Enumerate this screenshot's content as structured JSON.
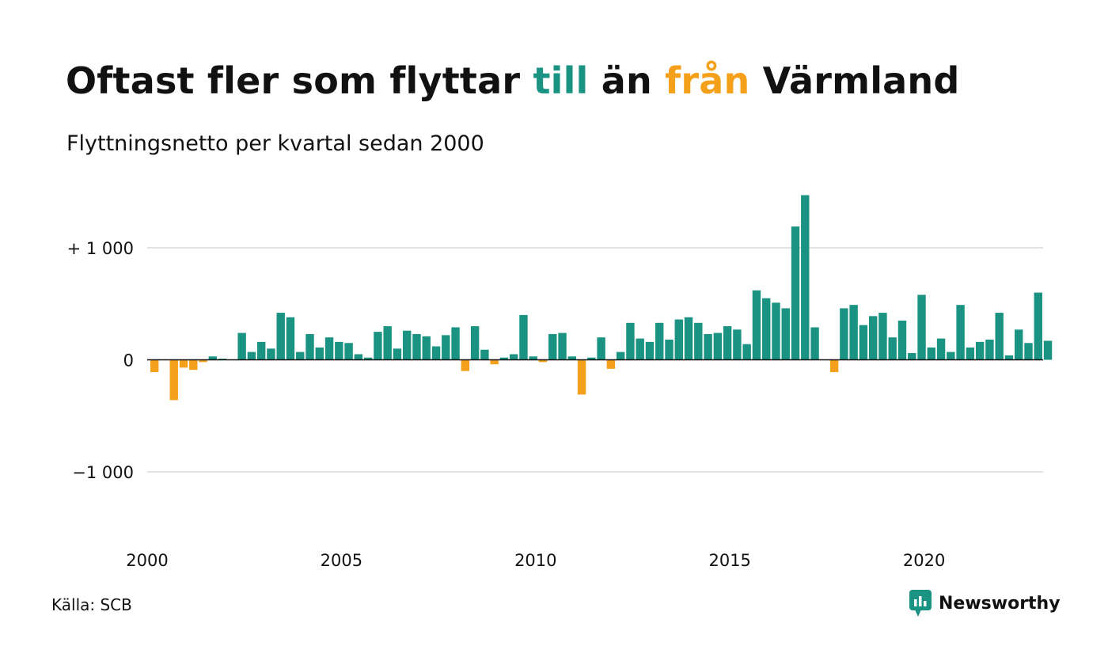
{
  "title": {
    "part1": "Oftast fler som flyttar ",
    "part2": "till",
    "part3": " än ",
    "part4": "från",
    "part5": " Värmland"
  },
  "subtitle": "Flyttningsnetto per kvartal sedan 2000",
  "source": "Källa: SCB",
  "brand": {
    "name": "Newsworthy",
    "icon": "chart-bubble-icon"
  },
  "colors": {
    "positive": "#1a9382",
    "negative": "#f5a01a",
    "grid": "#e3e3e3",
    "zero_line": "#111111"
  },
  "chart_data": {
    "type": "bar",
    "xlabel": "",
    "ylabel": "",
    "ylim": [
      -1600,
      1500
    ],
    "grid": true,
    "y_ticks": [
      {
        "value": 1000,
        "label": "+ 1 000"
      },
      {
        "value": 0,
        "label": "0"
      },
      {
        "value": -1000,
        "label": "−1 000"
      }
    ],
    "x_ticks": [
      {
        "year": 2000,
        "label": "2000"
      },
      {
        "year": 2005,
        "label": "2005"
      },
      {
        "year": 2010,
        "label": "2010"
      },
      {
        "year": 2015,
        "label": "2015"
      },
      {
        "year": 2020,
        "label": "2020"
      }
    ],
    "start_year": 2000,
    "periods_per_year": 4,
    "values": [
      -110,
      0,
      -360,
      -70,
      -90,
      -20,
      30,
      10,
      0,
      240,
      70,
      160,
      100,
      420,
      380,
      70,
      230,
      110,
      200,
      160,
      150,
      50,
      20,
      250,
      300,
      100,
      260,
      230,
      210,
      120,
      220,
      290,
      -100,
      300,
      90,
      -40,
      20,
      50,
      400,
      30,
      -20,
      230,
      240,
      30,
      -310,
      20,
      200,
      -80,
      70,
      330,
      190,
      160,
      330,
      180,
      360,
      380,
      330,
      230,
      240,
      300,
      270,
      140,
      620,
      550,
      510,
      460,
      1190,
      1470,
      290,
      0,
      -110,
      460,
      490,
      310,
      390,
      420,
      200,
      350,
      60,
      580,
      110,
      190,
      70,
      490,
      110,
      160,
      180,
      420,
      40,
      270,
      150,
      600,
      170
    ]
  }
}
